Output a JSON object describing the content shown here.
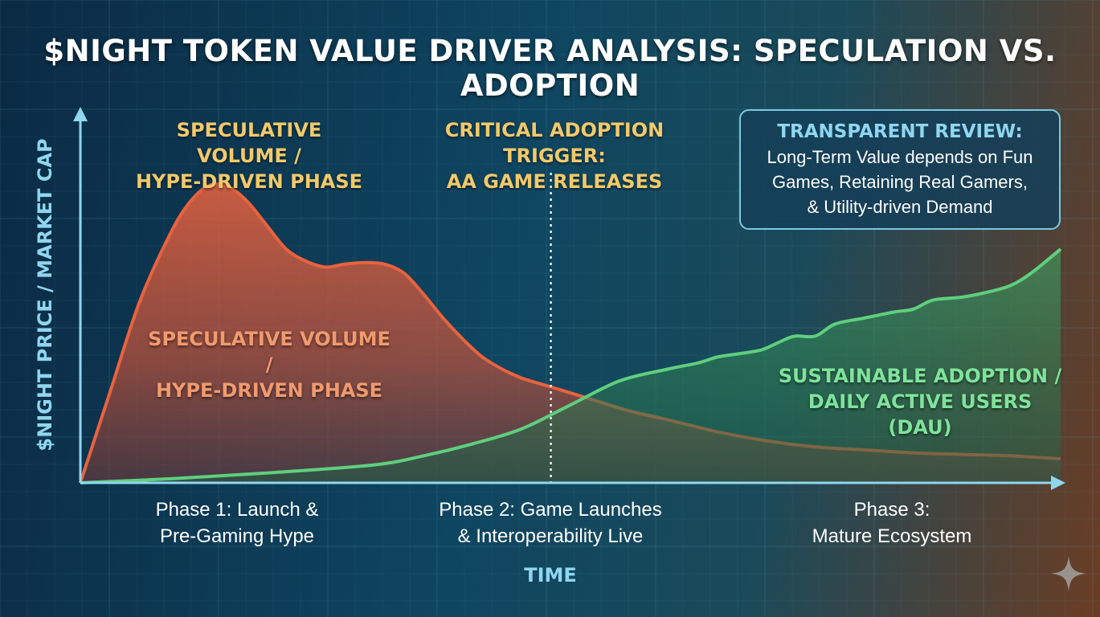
{
  "title": "$NIGHT TOKEN VALUE DRIVER ANALYSIS: SPECULATION VS. ADOPTION",
  "colors": {
    "speculation": "#e8623f",
    "adoption": "#5fcf7e",
    "axis": "#8fd6ef",
    "annotation_yellow": "#f2c96a"
  },
  "annotations": {
    "speculative_top": [
      "SPECULATIVE VOLUME /",
      "HYPE-DRIVEN PHASE"
    ],
    "trigger": [
      "CRITICAL ADOPTION TRIGGER:",
      "AA GAME RELEASES"
    ],
    "speculative_area": [
      "SPECULATIVE VOLUME /",
      "HYPE-DRIVEN PHASE"
    ],
    "adoption_area": [
      "SUSTAINABLE ADOPTION /",
      "DAILY ACTIVE USERS (DAU)"
    ]
  },
  "review": {
    "title": "TRANSPARENT REVIEW:",
    "lines": [
      "Long-Term Value depends on Fun",
      "Games, Retaining Real Gamers,",
      "& Utility-driven Demand"
    ]
  },
  "chart_data": {
    "type": "area",
    "xlabel": "TIME",
    "ylabel": "$NIGHT PRICE / MARKET CAP",
    "xlim": [
      0,
      100
    ],
    "ylim": [
      0,
      100
    ],
    "grid": true,
    "categories": [
      [
        "Phase 1: Launch &",
        "Pre-Gaming Hype"
      ],
      [
        "Phase 2: Game Launches",
        "& Interoperability Live"
      ],
      [
        "Phase 3:",
        "Mature Ecosystem"
      ]
    ],
    "trigger_x": 48,
    "series": [
      {
        "name": "SPECULATIVE VOLUME / HYPE-DRIVEN PHASE",
        "x": [
          0,
          3,
          6,
          9,
          11,
          13,
          15,
          17,
          19,
          21,
          23,
          25,
          27,
          29,
          31,
          33,
          35,
          37,
          39,
          41,
          43,
          45,
          48,
          52,
          56,
          60,
          65,
          70,
          75,
          80,
          85,
          90,
          95,
          100
        ],
        "y": [
          0,
          30,
          60,
          82,
          93,
          99,
          99,
          94,
          86,
          78,
          74,
          72,
          73,
          73.5,
          73,
          70,
          63,
          55,
          48,
          42,
          38,
          35,
          32,
          28,
          24,
          21,
          17,
          14,
          12,
          11,
          10,
          9.5,
          9,
          8
        ]
      },
      {
        "name": "SUSTAINABLE ADOPTION / DAILY ACTIVE USERS (DAU)",
        "x": [
          0,
          10,
          20,
          30,
          35,
          40,
          45,
          50,
          55,
          60,
          63,
          65,
          67,
          69,
          70,
          72,
          73,
          75,
          77,
          80,
          83,
          85,
          87,
          90,
          93,
          95,
          97,
          100
        ],
        "y": [
          0,
          1.5,
          3.5,
          6,
          9,
          13,
          18,
          26,
          34,
          38,
          40,
          42,
          43,
          44,
          45,
          48,
          49,
          49,
          53,
          55,
          57,
          58,
          61,
          62,
          64,
          66,
          70,
          78
        ]
      }
    ]
  }
}
